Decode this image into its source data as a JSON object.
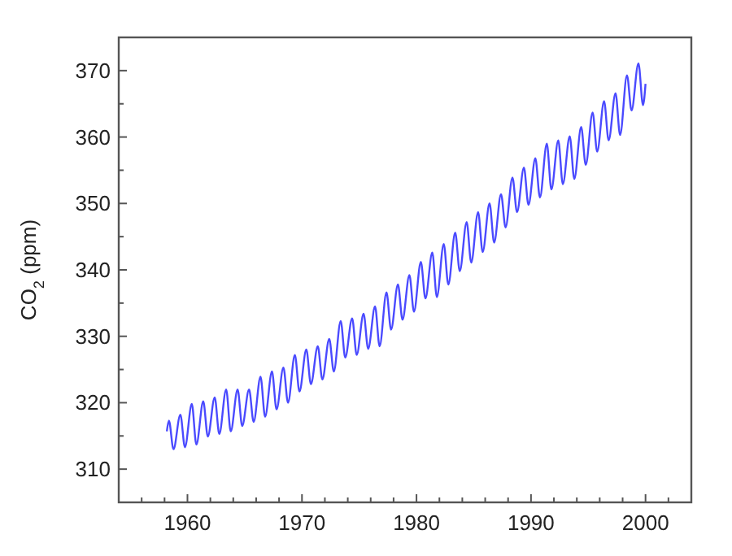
{
  "chart_data": {
    "type": "line",
    "ylabel": "CO$_{2}$ (ppm)",
    "xlim": [
      1954,
      2004
    ],
    "ylim": [
      305,
      375
    ],
    "xticks": [
      {
        "value": 1956,
        "label": null
      },
      {
        "value": 1958,
        "label": null
      },
      1960,
      {
        "value": 1962,
        "label": null
      },
      {
        "value": 1964,
        "label": null
      },
      {
        "value": 1966,
        "label": null
      },
      {
        "value": 1968,
        "label": null
      },
      1970,
      {
        "value": 1972,
        "label": null
      },
      {
        "value": 1974,
        "label": null
      },
      {
        "value": 1976,
        "label": null
      },
      {
        "value": 1978,
        "label": null
      },
      1980,
      {
        "value": 1982,
        "label": null
      },
      {
        "value": 1984,
        "label": null
      },
      {
        "value": 1986,
        "label": null
      },
      {
        "value": 1988,
        "label": null
      },
      1990,
      {
        "value": 1992,
        "label": null
      },
      {
        "value": 1994,
        "label": null
      },
      {
        "value": 1996,
        "label": null
      },
      {
        "value": 1998,
        "label": null
      },
      2000,
      {
        "value": 2002,
        "label": null
      }
    ],
    "yticks": [
      310,
      {
        "value": 315,
        "label": null
      },
      320,
      {
        "value": 325,
        "label": null
      },
      330,
      {
        "value": 335,
        "label": null
      },
      340,
      {
        "value": 345,
        "label": null
      },
      350,
      {
        "value": 355,
        "label": null
      },
      360,
      {
        "value": 365,
        "label": null
      },
      370
    ],
    "grid": false,
    "marker": "none",
    "line_style": "solid",
    "x": [
      1958.2,
      1958.38,
      1958.78,
      1959.38,
      1959.78,
      1960.38,
      1960.78,
      1961.38,
      1961.78,
      1962.38,
      1962.78,
      1963.38,
      1963.78,
      1964.38,
      1964.78,
      1965.38,
      1965.78,
      1966.38,
      1966.78,
      1967.38,
      1967.78,
      1968.38,
      1968.78,
      1969.38,
      1969.78,
      1970.38,
      1970.78,
      1971.38,
      1971.78,
      1972.38,
      1972.78,
      1973.38,
      1973.78,
      1974.38,
      1974.78,
      1975.38,
      1975.78,
      1976.38,
      1976.78,
      1977.38,
      1977.78,
      1978.38,
      1978.78,
      1979.38,
      1979.78,
      1980.38,
      1980.78,
      1981.38,
      1981.78,
      1982.38,
      1982.78,
      1983.38,
      1983.78,
      1984.38,
      1984.78,
      1985.38,
      1985.78,
      1986.38,
      1986.78,
      1987.38,
      1987.78,
      1988.38,
      1988.78,
      1989.38,
      1989.78,
      1990.38,
      1990.78,
      1991.38,
      1991.78,
      1992.38,
      1992.78,
      1993.38,
      1993.78,
      1994.38,
      1994.78,
      1995.38,
      1995.78,
      1996.38,
      1996.78,
      1997.38,
      1997.78,
      1998.38,
      1998.78,
      1999.38,
      1999.78,
      2000.0
    ],
    "series": [
      {
        "color": "#4a4aff",
        "values": [
          315.7,
          317.3,
          313.0,
          318.2,
          313.3,
          319.8,
          313.7,
          320.2,
          314.9,
          320.8,
          315.3,
          322.0,
          315.7,
          322.0,
          316.5,
          322.0,
          317.1,
          323.9,
          317.9,
          324.7,
          319.0,
          325.3,
          320.0,
          327.2,
          321.7,
          328.0,
          322.8,
          328.5,
          323.5,
          329.6,
          324.7,
          332.3,
          326.8,
          332.7,
          327.2,
          333.4,
          328.1,
          334.5,
          328.5,
          336.6,
          331.0,
          337.8,
          332.5,
          339.2,
          333.7,
          341.2,
          335.7,
          342.6,
          335.9,
          343.9,
          337.8,
          345.6,
          339.8,
          347.2,
          341.1,
          348.7,
          342.7,
          350.0,
          344.1,
          351.4,
          346.4,
          353.9,
          348.7,
          355.4,
          349.8,
          356.8,
          350.9,
          359.0,
          352.1,
          359.5,
          352.9,
          360.1,
          353.7,
          361.5,
          355.8,
          363.7,
          357.8,
          365.4,
          359.5,
          366.6,
          360.3,
          369.3,
          364.0,
          371.1,
          364.8,
          368.0
        ]
      }
    ]
  }
}
